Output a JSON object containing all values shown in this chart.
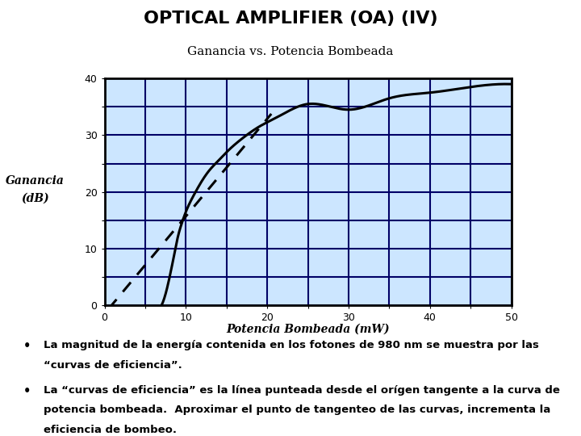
{
  "title": "OPTICAL AMPLIFIER (OA) (IV)",
  "subtitle": "Ganancia vs. Potencia Bombeada",
  "xlabel": "Potencia Bombeada (mW)",
  "ylabel_line1": "Ganancia",
  "ylabel_line2": "(dB)",
  "xlim": [
    0,
    50
  ],
  "ylim": [
    0,
    40
  ],
  "plot_bg_color": "#cce6ff",
  "curve_color": "#000000",
  "dashed_color": "#000000",
  "grid_major_color": "#000080",
  "grid_minor_color": "#6699cc",
  "curve_x": [
    7.0,
    7.5,
    8.0,
    8.5,
    9.0,
    9.5,
    10.0,
    11.0,
    12.0,
    13.0,
    14.0,
    15.0,
    17.0,
    19.0,
    21.0,
    25.0,
    30.0,
    35.0,
    40.0,
    45.0,
    50.0
  ],
  "curve_y": [
    0.0,
    2.0,
    5.0,
    8.5,
    12.0,
    14.5,
    16.5,
    19.5,
    22.0,
    24.0,
    25.5,
    27.0,
    29.5,
    31.5,
    33.0,
    35.5,
    34.5,
    36.5,
    37.5,
    38.5,
    39.0
  ],
  "dash_x0": 0.5,
  "dash_x1": 20.5,
  "dash_slope": 1.72,
  "dash_intercept": -1.5,
  "bullet1": "La magnitud de la energía contenida en los fotones de 980 nm se muestra por las “curvas de eficiencia”.",
  "bullet2": "La “curvas de eficiencia” es la línea punteada desde el orígen tangente a la curva de potencia bombeada.  Aproximar el punto de tangenteo de las curvas, incrementa la eficiencia de bombeo.",
  "title_fontsize": 16,
  "subtitle_fontsize": 11,
  "axis_label_fontsize": 9,
  "tick_fontsize": 9,
  "bullet_fontsize": 9.5
}
